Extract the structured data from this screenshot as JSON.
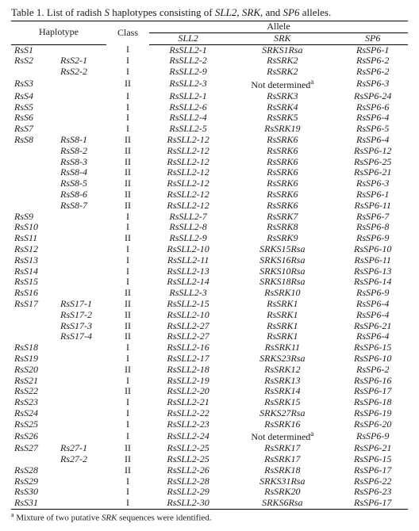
{
  "caption_prefix": "Table 1. List of radish ",
  "caption_mid": " haplotypes consisting of ",
  "caption_g1": "S",
  "caption_g2": "SLL2",
  "caption_g3": "SRK",
  "caption_g4": "SP6",
  "caption_sep": ", ",
  "caption_and": ", and ",
  "caption_end": " alleles.",
  "hdr": {
    "haplotype": "Haplotype",
    "class": "Class",
    "allele": "Allele",
    "sll2": "SLL2",
    "srk": "SRK",
    "sp6": "SP6"
  },
  "footnote_sup": "a",
  "footnote_text": " Mixture of two putative ",
  "footnote_gene": "SRK",
  "footnote_tail": " sequences were identified.",
  "not_determined": "Not determined",
  "rows": [
    {
      "h1": "RsS1",
      "h2": "",
      "cls": "I",
      "sll2": "RsSLL2-1",
      "srk": "SRKS1Rsa",
      "sp6": "RsSP6-1"
    },
    {
      "h1": "RsS2",
      "h2": "RsS2-1",
      "cls": "I",
      "sll2": "RsSLL2-2",
      "srk": "RsSRK2",
      "sp6": "RsSP6-2"
    },
    {
      "h1": "",
      "h2": "RsS2-2",
      "cls": "I",
      "sll2": "RsSLL2-9",
      "srk": "RsSRK2",
      "sp6": "RsSP6-2"
    },
    {
      "h1": "RsS3",
      "h2": "",
      "cls": "II",
      "sll2": "RsSLL2-3",
      "srk": "NOTDET",
      "sp6": "RsSP6-3"
    },
    {
      "h1": "RsS4",
      "h2": "",
      "cls": "I",
      "sll2": "RsSLL2-1",
      "srk": "RsSRK3",
      "sp6": "RsSP6-24"
    },
    {
      "h1": "RsS5",
      "h2": "",
      "cls": "I",
      "sll2": "RsSLL2-6",
      "srk": "RsSRK4",
      "sp6": "RsSP6-6"
    },
    {
      "h1": "RsS6",
      "h2": "",
      "cls": "I",
      "sll2": "RsSLL2-4",
      "srk": "RsSRK5",
      "sp6": "RsSP6-4"
    },
    {
      "h1": "RsS7",
      "h2": "",
      "cls": "I",
      "sll2": "RsSLL2-5",
      "srk": "RsSRK19",
      "sp6": "RsSP6-5"
    },
    {
      "h1": "RsS8",
      "h2": "RsS8-1",
      "cls": "II",
      "sll2": "RsSLL2-12",
      "srk": "RsSRK6",
      "sp6": "RsSP6-4"
    },
    {
      "h1": "",
      "h2": "RsS8-2",
      "cls": "II",
      "sll2": "RsSLL2-12",
      "srk": "RsSRK6",
      "sp6": "RsSP6-12"
    },
    {
      "h1": "",
      "h2": "RsS8-3",
      "cls": "II",
      "sll2": "RsSLL2-12",
      "srk": "RsSRK6",
      "sp6": "RsSP6-25"
    },
    {
      "h1": "",
      "h2": "RsS8-4",
      "cls": "II",
      "sll2": "RsSLL2-12",
      "srk": "RsSRK6",
      "sp6": "RsSP6-21"
    },
    {
      "h1": "",
      "h2": "RsS8-5",
      "cls": "II",
      "sll2": "RsSLL2-12",
      "srk": "RsSRK6",
      "sp6": "RsSP6-3"
    },
    {
      "h1": "",
      "h2": "RsS8-6",
      "cls": "II",
      "sll2": "RsSLL2-12",
      "srk": "RsSRK6",
      "sp6": "RsSP6-1"
    },
    {
      "h1": "",
      "h2": "RsS8-7",
      "cls": "II",
      "sll2": "RsSLL2-12",
      "srk": "RsSRK6",
      "sp6": "RsSP6-11"
    },
    {
      "h1": "RsS9",
      "h2": "",
      "cls": "I",
      "sll2": "RsSLL2-7",
      "srk": "RsSRK7",
      "sp6": "RsSP6-7"
    },
    {
      "h1": "RsS10",
      "h2": "",
      "cls": "I",
      "sll2": "RsSLL2-8",
      "srk": "RsSRK8",
      "sp6": "RsSP6-8"
    },
    {
      "h1": "RsS11",
      "h2": "",
      "cls": "II",
      "sll2": "RsSLL2-9",
      "srk": "RsSRK9",
      "sp6": "RsSP6-9"
    },
    {
      "h1": "RsS12",
      "h2": "",
      "cls": "I",
      "sll2": "RsSLL2-10",
      "srk": "SRKS15Rsa",
      "sp6": "RsSP6-10"
    },
    {
      "h1": "RsS13",
      "h2": "",
      "cls": "I",
      "sll2": "RsSLL2-11",
      "srk": "SRKS16Rsa",
      "sp6": "RsSP6-11"
    },
    {
      "h1": "RsS14",
      "h2": "",
      "cls": "I",
      "sll2": "RsSLL2-13",
      "srk": "SRKS10Rsa",
      "sp6": "RsSP6-13"
    },
    {
      "h1": "RsS15",
      "h2": "",
      "cls": "I",
      "sll2": "RsSLL2-14",
      "srk": "SRKS18Rsa",
      "sp6": "RsSP6-14"
    },
    {
      "h1": "RsS16",
      "h2": "",
      "cls": "II",
      "sll2": "RsSLL2-3",
      "srk": "RsSRK10",
      "sp6": "RsSP6-9"
    },
    {
      "h1": "RsS17",
      "h2": "RsS17-1",
      "cls": "II",
      "sll2": "RsSLL2-15",
      "srk": "RsSRK1",
      "sp6": "RsSP6-4"
    },
    {
      "h1": "",
      "h2": "RsS17-2",
      "cls": "II",
      "sll2": "RsSLL2-10",
      "srk": "RsSRK1",
      "sp6": "RsSP6-4"
    },
    {
      "h1": "",
      "h2": "RsS17-3",
      "cls": "II",
      "sll2": "RsSLL2-27",
      "srk": "RsSRK1",
      "sp6": "RsSP6-21"
    },
    {
      "h1": "",
      "h2": "RsS17-4",
      "cls": "II",
      "sll2": "RsSLL2-27",
      "srk": "RsSRK1",
      "sp6": "RsSP6-4"
    },
    {
      "h1": "RsS18",
      "h2": "",
      "cls": "I",
      "sll2": "RsSLL2-16",
      "srk": "RsSRK11",
      "sp6": "RsSP6-15"
    },
    {
      "h1": "RsS19",
      "h2": "",
      "cls": "I",
      "sll2": "RsSLL2-17",
      "srk": "SRKS23Rsa",
      "sp6": "RsSP6-10"
    },
    {
      "h1": "RsS20",
      "h2": "",
      "cls": "II",
      "sll2": "RsSLL2-18",
      "srk": "RsSRK12",
      "sp6": "RsSP6-2"
    },
    {
      "h1": "RsS21",
      "h2": "",
      "cls": "I",
      "sll2": "RsSLL2-19",
      "srk": "RsSRK13",
      "sp6": "RsSP6-16"
    },
    {
      "h1": "RsS22",
      "h2": "",
      "cls": "II",
      "sll2": "RsSLL2-20",
      "srk": "RsSRK14",
      "sp6": "RsSP6-17"
    },
    {
      "h1": "RsS23",
      "h2": "",
      "cls": "I",
      "sll2": "RsSLL2-21",
      "srk": "RsSRK15",
      "sp6": "RsSP6-18"
    },
    {
      "h1": "RsS24",
      "h2": "",
      "cls": "I",
      "sll2": "RsSLL2-22",
      "srk": "SRKS27Rsa",
      "sp6": "RsSP6-19"
    },
    {
      "h1": "RsS25",
      "h2": "",
      "cls": "I",
      "sll2": "RsSLL2-23",
      "srk": "RsSRK16",
      "sp6": "RsSP6-20"
    },
    {
      "h1": "RsS26",
      "h2": "",
      "cls": "I",
      "sll2": "RsSLL2-24",
      "srk": "NOTDET",
      "sp6": "RsSP6-9"
    },
    {
      "h1": "RsS27",
      "h2": "Rs27-1",
      "cls": "II",
      "sll2": "RsSLL2-25",
      "srk": "RsSRK17",
      "sp6": "RsSP6-21"
    },
    {
      "h1": "",
      "h2": "Rs27-2",
      "cls": "II",
      "sll2": "RsSLL2-25",
      "srk": "RsSRK17",
      "sp6": "RsSP6-15"
    },
    {
      "h1": "RsS28",
      "h2": "",
      "cls": "II",
      "sll2": "RsSLL2-26",
      "srk": "RsSRK18",
      "sp6": "RsSP6-17"
    },
    {
      "h1": "RsS29",
      "h2": "",
      "cls": "I",
      "sll2": "RsSLL2-28",
      "srk": "SRKS31Rsa",
      "sp6": "RsSP6-22"
    },
    {
      "h1": "RsS30",
      "h2": "",
      "cls": "I",
      "sll2": "RsSLL2-29",
      "srk": "RsSRK20",
      "sp6": "RsSP6-23"
    },
    {
      "h1": "RsS31",
      "h2": "",
      "cls": "I",
      "sll2": "RsSLL2-30",
      "srk": "SRKS6Rsa",
      "sp6": "RsSP6-17"
    }
  ]
}
